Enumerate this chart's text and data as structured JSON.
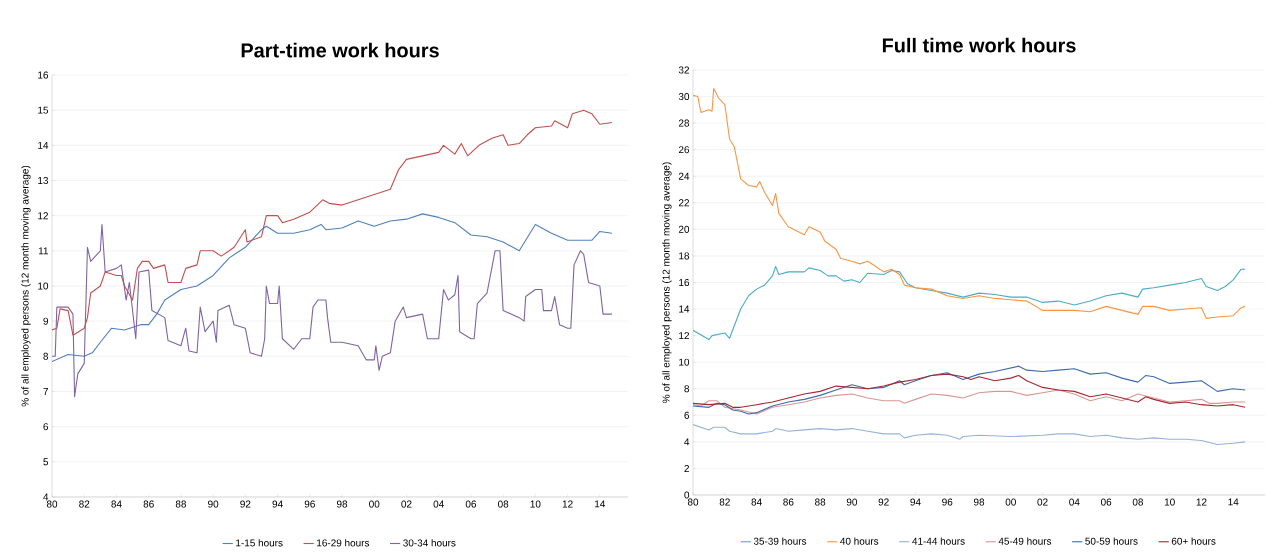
{
  "chart_data": [
    {
      "type": "line",
      "title": "Part-time work hours",
      "ylabel": "% of all employed persons (12 month moving average)",
      "xlim": [
        1980,
        2015.75
      ],
      "ylim": [
        4,
        16
      ],
      "yticks": [
        4,
        5,
        6,
        7,
        8,
        9,
        10,
        11,
        12,
        13,
        14,
        15,
        16
      ],
      "xticks": [
        {
          "value": 1980,
          "label": "80"
        },
        {
          "value": 1982,
          "label": "82"
        },
        {
          "value": 1984,
          "label": "84"
        },
        {
          "value": 1986,
          "label": "86"
        },
        {
          "value": 1988,
          "label": "88"
        },
        {
          "value": 1990,
          "label": "90"
        },
        {
          "value": 1992,
          "label": "92"
        },
        {
          "value": 1994,
          "label": "94"
        },
        {
          "value": 1996,
          "label": "96"
        },
        {
          "value": 1998,
          "label": "98"
        },
        {
          "value": 2000,
          "label": "00"
        },
        {
          "value": 2002,
          "label": "02"
        },
        {
          "value": 2004,
          "label": "04"
        },
        {
          "value": 2006,
          "label": "06"
        },
        {
          "value": 2008,
          "label": "08"
        },
        {
          "value": 2010,
          "label": "10"
        },
        {
          "value": 2012,
          "label": "12"
        },
        {
          "value": 2014,
          "label": "14"
        }
      ],
      "grid": "y",
      "legend": "bottom",
      "line_style": "solid",
      "series": [
        {
          "name": "1-15 hours",
          "color": "#4f81bd",
          "x": [
            1980,
            1981,
            1982,
            1982.5,
            1983,
            1983.7,
            1984.5,
            1985.5,
            1986,
            1986.5,
            1987,
            1988,
            1989,
            1990,
            1991,
            1992,
            1993,
            1993.3,
            1994,
            1995,
            1996,
            1996.7,
            1997,
            1998,
            1999,
            2000,
            2001,
            2002,
            2003,
            2004,
            2005,
            2006,
            2007,
            2008,
            2009,
            2010,
            2011,
            2012,
            2013,
            2013.5,
            2014,
            2014.75
          ],
          "values": [
            7.85,
            8.05,
            8.0,
            8.1,
            8.4,
            8.8,
            8.75,
            8.9,
            8.9,
            9.2,
            9.6,
            9.9,
            10.0,
            10.3,
            10.8,
            11.1,
            11.6,
            11.7,
            11.5,
            11.5,
            11.6,
            11.75,
            11.6,
            11.65,
            11.85,
            11.7,
            11.85,
            11.9,
            12.05,
            11.95,
            11.8,
            11.45,
            11.4,
            11.25,
            11.0,
            11.75,
            11.5,
            11.3,
            11.3,
            11.3,
            11.55,
            11.5
          ]
        },
        {
          "name": "16-29 hours",
          "color": "#c0504d",
          "x": [
            1980,
            1980.3,
            1980.5,
            1981,
            1981.3,
            1982,
            1982.2,
            1982.4,
            1983,
            1983.3,
            1984,
            1984.3,
            1984.5,
            1985,
            1985.3,
            1985.6,
            1986,
            1986.3,
            1987,
            1987.2,
            1988,
            1988.3,
            1989,
            1989.2,
            1990,
            1990.5,
            1991,
            1991.3,
            1992,
            1992.1,
            1993,
            1993.3,
            1994,
            1994.3,
            1995,
            1996,
            1996.8,
            1997.2,
            1998,
            1999,
            2000,
            2001,
            2001.5,
            2002,
            2003,
            2004,
            2004.3,
            2005,
            2005.4,
            2005.8,
            2006.5,
            2007.3,
            2008,
            2008.3,
            2009,
            2009.5,
            2010,
            2011,
            2011.2,
            2012,
            2012.3,
            2013,
            2013.5,
            2014,
            2014.75
          ],
          "values": [
            8.75,
            8.8,
            9.35,
            9.3,
            8.6,
            8.8,
            9.1,
            9.8,
            10.0,
            10.4,
            10.3,
            10.3,
            10.0,
            9.6,
            10.5,
            10.7,
            10.7,
            10.5,
            10.6,
            10.1,
            10.1,
            10.5,
            10.6,
            11.0,
            11.0,
            10.85,
            11.0,
            11.1,
            11.6,
            11.25,
            11.4,
            12.0,
            12.0,
            11.8,
            11.9,
            12.1,
            12.45,
            12.35,
            12.3,
            12.45,
            12.6,
            12.75,
            13.3,
            13.6,
            13.7,
            13.8,
            14.0,
            13.75,
            14.05,
            13.7,
            14.0,
            14.2,
            14.3,
            14.0,
            14.05,
            14.3,
            14.5,
            14.55,
            14.7,
            14.5,
            14.9,
            15.0,
            14.9,
            14.6,
            14.65
          ]
        },
        {
          "name": "30-34 hours",
          "color": "#8064a2",
          "x": [
            1980,
            1980.2,
            1980.3,
            1981,
            1981.3,
            1981.4,
            1981.6,
            1982,
            1982.2,
            1982.4,
            1983,
            1983.1,
            1983.3,
            1984,
            1984.3,
            1984.6,
            1984.8,
            1985.2,
            1985.4,
            1986,
            1986.2,
            1987,
            1987.2,
            1988,
            1988.3,
            1988.5,
            1989,
            1989.2,
            1989.5,
            1990,
            1990.2,
            1990.3,
            1991,
            1991.3,
            1992,
            1992.3,
            1993,
            1993.2,
            1993.3,
            1993.5,
            1994,
            1994.1,
            1994.3,
            1995,
            1995.5,
            1996,
            1996.2,
            1996.5,
            1997,
            1997.1,
            1997.3,
            1998,
            1999,
            1999.5,
            2000,
            2000.1,
            2000.3,
            2000.5,
            2001,
            2001.3,
            2001.8,
            2002,
            2003,
            2003.3,
            2004,
            2004.3,
            2004.6,
            2005,
            2005.2,
            2005.3,
            2006,
            2006.2,
            2006.4,
            2007,
            2007.5,
            2007.8,
            2008,
            2009,
            2009.3,
            2009.4,
            2010,
            2010.4,
            2010.5,
            2011,
            2011.2,
            2011.5,
            2012,
            2012.2,
            2012.4,
            2012.8,
            2013,
            2013.3,
            2014,
            2014.2,
            2014.75
          ],
          "values": [
            8.0,
            8.0,
            9.4,
            9.4,
            9.2,
            6.85,
            7.5,
            7.8,
            11.1,
            10.7,
            11.0,
            11.75,
            10.4,
            10.5,
            10.6,
            9.6,
            10.1,
            8.5,
            10.4,
            10.45,
            9.3,
            9.1,
            8.45,
            8.3,
            8.8,
            8.15,
            8.1,
            9.4,
            8.7,
            9.0,
            8.4,
            9.3,
            9.45,
            8.9,
            8.8,
            8.1,
            8.0,
            8.5,
            10.0,
            9.5,
            9.5,
            10.0,
            8.5,
            8.2,
            8.5,
            8.5,
            9.4,
            9.6,
            9.6,
            9.1,
            8.4,
            8.4,
            8.3,
            7.9,
            7.9,
            8.3,
            7.6,
            8.0,
            8.1,
            9.0,
            9.4,
            9.1,
            9.2,
            8.5,
            8.5,
            9.9,
            9.6,
            9.75,
            10.3,
            8.7,
            8.5,
            8.5,
            9.5,
            9.8,
            11.0,
            11.0,
            9.3,
            9.1,
            9.0,
            9.7,
            9.9,
            9.9,
            9.3,
            9.3,
            9.7,
            8.9,
            8.8,
            8.8,
            10.6,
            11.0,
            10.9,
            10.1,
            10.0,
            9.2,
            9.2
          ]
        }
      ]
    },
    {
      "type": "line",
      "title": "Full time work hours",
      "ylabel": "% of all employed persons (12 month moving average)",
      "xlim": [
        1980,
        2016
      ],
      "ylim": [
        0,
        32
      ],
      "yticks": [
        0,
        2,
        4,
        6,
        8,
        10,
        12,
        14,
        16,
        18,
        20,
        22,
        24,
        26,
        28,
        30,
        32
      ],
      "xticks": [
        {
          "value": 1980,
          "label": "80"
        },
        {
          "value": 1982,
          "label": "82"
        },
        {
          "value": 1984,
          "label": "84"
        },
        {
          "value": 1986,
          "label": "86"
        },
        {
          "value": 1988,
          "label": "88"
        },
        {
          "value": 1990,
          "label": "90"
        },
        {
          "value": 1992,
          "label": "92"
        },
        {
          "value": 1994,
          "label": "94"
        },
        {
          "value": 1996,
          "label": "96"
        },
        {
          "value": 1998,
          "label": "98"
        },
        {
          "value": 2000,
          "label": "00"
        },
        {
          "value": 2002,
          "label": "02"
        },
        {
          "value": 2004,
          "label": "04"
        },
        {
          "value": 2006,
          "label": "06"
        },
        {
          "value": 2008,
          "label": "08"
        },
        {
          "value": 2010,
          "label": "10"
        },
        {
          "value": 2012,
          "label": "12"
        },
        {
          "value": 2014,
          "label": "14"
        }
      ],
      "grid": "y",
      "legend": "bottom",
      "line_style": "solid",
      "series": [
        {
          "name": "35-39 hours",
          "color": "#4bacc6",
          "x": [
            1980,
            1981,
            1981.2,
            1982,
            1982.3,
            1983,
            1983.5,
            1984,
            1984.5,
            1985,
            1985.2,
            1985.4,
            1986,
            1987,
            1987.3,
            1988,
            1988.5,
            1989,
            1989.5,
            1990,
            1990.5,
            1991,
            1992,
            1992.5,
            1993,
            1993.5,
            1994,
            1995,
            1996,
            1997,
            1998,
            1999,
            2000,
            2001,
            2002,
            2003,
            2004,
            2005,
            2006,
            2007,
            2008,
            2008.3,
            2009,
            2010,
            2011,
            2012,
            2012.3,
            2013,
            2013.5,
            2014,
            2014.5,
            2014.75
          ],
          "values": [
            12.4,
            11.7,
            12.0,
            12.2,
            11.8,
            14.0,
            15.0,
            15.5,
            15.8,
            16.5,
            17.2,
            16.6,
            16.8,
            16.8,
            17.1,
            16.9,
            16.5,
            16.5,
            16.1,
            16.2,
            16.0,
            16.7,
            16.6,
            16.9,
            16.8,
            15.9,
            15.6,
            15.4,
            15.2,
            14.9,
            15.2,
            15.1,
            14.9,
            14.9,
            14.5,
            14.6,
            14.3,
            14.6,
            15.0,
            15.2,
            14.9,
            15.5,
            15.6,
            15.8,
            16.0,
            16.3,
            15.7,
            15.4,
            15.7,
            16.2,
            17.0,
            17.0
          ]
        },
        {
          "name": "40 hours",
          "color": "#f79646",
          "x": [
            1980,
            1980.3,
            1980.5,
            1981,
            1981.2,
            1981.3,
            1981.6,
            1982,
            1982.3,
            1982.6,
            1983,
            1983.5,
            1984,
            1984.2,
            1984.5,
            1985,
            1985.2,
            1985.4,
            1986,
            1986.5,
            1987,
            1987.3,
            1988,
            1988.3,
            1989,
            1989.3,
            1990,
            1990.5,
            1991,
            1991.5,
            1992,
            1992.5,
            1993,
            1993.3,
            1994,
            1995,
            1996,
            1997,
            1998,
            1999,
            2000,
            2001,
            2002,
            2003,
            2004,
            2005,
            2006,
            2007,
            2008,
            2008.3,
            2009,
            2010,
            2011,
            2012,
            2012.3,
            2013,
            2014,
            2014.5,
            2014.75
          ],
          "values": [
            30.1,
            30.0,
            28.8,
            29.0,
            28.9,
            30.6,
            29.9,
            29.4,
            26.8,
            26.2,
            23.8,
            23.3,
            23.2,
            23.6,
            22.8,
            21.8,
            22.7,
            21.2,
            20.2,
            19.9,
            19.6,
            20.2,
            19.8,
            19.1,
            18.5,
            17.8,
            17.6,
            17.4,
            17.6,
            17.2,
            16.8,
            17.0,
            16.6,
            15.8,
            15.6,
            15.5,
            15.0,
            14.8,
            15.0,
            14.8,
            14.7,
            14.6,
            13.9,
            13.9,
            13.9,
            13.8,
            14.2,
            13.9,
            13.6,
            14.2,
            14.2,
            13.9,
            14.0,
            14.1,
            13.3,
            13.4,
            13.5,
            14.1,
            14.2
          ]
        },
        {
          "name": "41-44 hours",
          "color": "#95b3d7",
          "x": [
            1980,
            1981,
            1981.3,
            1982,
            1982.3,
            1983,
            1984,
            1985,
            1985.2,
            1986,
            1987,
            1988,
            1989,
            1990,
            1991,
            1992,
            1993,
            1993.3,
            1994,
            1995,
            1996,
            1996.8,
            1997,
            1998,
            2000,
            2002,
            2003,
            2004,
            2005,
            2006,
            2007,
            2008,
            2009,
            2010,
            2011,
            2012,
            2013,
            2014,
            2014.75
          ],
          "values": [
            5.3,
            4.9,
            5.1,
            5.1,
            4.8,
            4.6,
            4.6,
            4.8,
            5.0,
            4.8,
            4.9,
            5.0,
            4.9,
            5.0,
            4.8,
            4.6,
            4.6,
            4.3,
            4.5,
            4.6,
            4.5,
            4.2,
            4.4,
            4.5,
            4.4,
            4.5,
            4.6,
            4.6,
            4.4,
            4.5,
            4.3,
            4.2,
            4.3,
            4.2,
            4.2,
            4.1,
            3.8,
            3.9,
            4.0
          ]
        },
        {
          "name": "45-49 hours",
          "color": "#d99694",
          "x": [
            1980,
            1980.5,
            1981,
            1981.5,
            1982,
            1983,
            1984,
            1985,
            1986,
            1987,
            1988,
            1989,
            1990,
            1991,
            1992,
            1993,
            1993.3,
            1994,
            1995,
            1996,
            1997,
            1998,
            1999,
            2000,
            2001,
            2002,
            2003,
            2004,
            2005,
            2006,
            2007,
            2008,
            2009,
            2010,
            2011,
            2012,
            2012.5,
            2013,
            2014,
            2014.75
          ],
          "values": [
            6.8,
            6.7,
            7.1,
            7.1,
            6.6,
            6.4,
            6.1,
            6.6,
            6.8,
            7.0,
            7.3,
            7.5,
            7.6,
            7.3,
            7.1,
            7.1,
            6.9,
            7.2,
            7.6,
            7.5,
            7.3,
            7.7,
            7.8,
            7.8,
            7.5,
            7.7,
            7.9,
            7.6,
            7.1,
            7.4,
            7.1,
            7.6,
            7.3,
            7.0,
            7.1,
            7.2,
            6.9,
            6.9,
            7.0,
            7.0
          ]
        },
        {
          "name": "50-59 hours",
          "color": "#3e6bac",
          "x": [
            1980,
            1981,
            1981.5,
            1982,
            1982.5,
            1983,
            1983.5,
            1984,
            1985,
            1986,
            1987,
            1988,
            1989,
            1990,
            1991,
            1992,
            1993,
            1993.3,
            1994,
            1995,
            1996,
            1997,
            1998,
            1999,
            2000.5,
            2001,
            2002,
            2003,
            2004,
            2005,
            2006,
            2007,
            2008,
            2008.5,
            2009,
            2010,
            2011,
            2012,
            2013,
            2014,
            2014.75
          ],
          "values": [
            6.7,
            6.6,
            6.9,
            6.8,
            6.4,
            6.3,
            6.1,
            6.2,
            6.7,
            7.0,
            7.2,
            7.5,
            7.9,
            8.3,
            8.0,
            8.1,
            8.6,
            8.3,
            8.6,
            9.0,
            9.2,
            8.7,
            9.1,
            9.3,
            9.7,
            9.4,
            9.3,
            9.4,
            9.5,
            9.1,
            9.2,
            8.8,
            8.5,
            9.0,
            8.9,
            8.4,
            8.5,
            8.6,
            7.8,
            8.0,
            7.9
          ]
        },
        {
          "name": "60+ hours",
          "color": "#a5282f",
          "x": [
            1980,
            1981,
            1982,
            1982.5,
            1983,
            1984,
            1985,
            1986,
            1987,
            1988,
            1989,
            1990,
            1991,
            1992,
            1993,
            1994,
            1995,
            1996,
            1997,
            1997.5,
            1998,
            1999,
            2000,
            2000.5,
            2001,
            2002,
            2003,
            2004,
            2005,
            2006,
            2007,
            2008,
            2008.5,
            2009,
            2010,
            2011,
            2012,
            2013,
            2014,
            2014.75
          ],
          "values": [
            6.9,
            6.8,
            6.9,
            6.6,
            6.6,
            6.8,
            7.0,
            7.3,
            7.6,
            7.8,
            8.2,
            8.1,
            8.0,
            8.2,
            8.5,
            8.7,
            9.0,
            9.1,
            8.9,
            8.7,
            8.9,
            8.6,
            8.8,
            9.0,
            8.6,
            8.1,
            7.9,
            7.8,
            7.4,
            7.6,
            7.3,
            7.0,
            7.4,
            7.2,
            6.9,
            7.0,
            6.8,
            6.7,
            6.8,
            6.6
          ]
        }
      ]
    }
  ]
}
